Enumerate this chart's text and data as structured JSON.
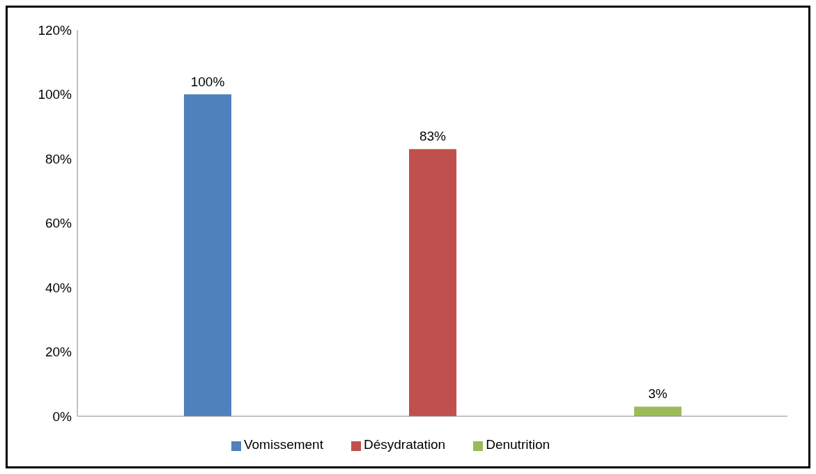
{
  "chart_data": {
    "type": "bar",
    "categories": [
      null
    ],
    "series": [
      {
        "name": "Vomissement",
        "color": "#4f81bd",
        "values": [
          100
        ],
        "value_labels": [
          "100%"
        ]
      },
      {
        "name": "Désydratation",
        "color": "#c0504d",
        "values": [
          83
        ],
        "value_labels": [
          "83%"
        ]
      },
      {
        "name": "Denutrition",
        "color": "#9bbb59",
        "values": [
          3
        ],
        "value_labels": [
          "3%"
        ]
      }
    ],
    "ylim": [
      0,
      120
    ],
    "yticks": [
      {
        "value": 0,
        "label": "0%"
      },
      {
        "value": 20,
        "label": "20%"
      },
      {
        "value": 40,
        "label": "40%"
      },
      {
        "value": 60,
        "label": "60%"
      },
      {
        "value": 80,
        "label": "80%"
      },
      {
        "value": 100,
        "label": "100%"
      },
      {
        "value": 120,
        "label": "120%"
      }
    ],
    "grid": false,
    "legend": "bottom"
  }
}
